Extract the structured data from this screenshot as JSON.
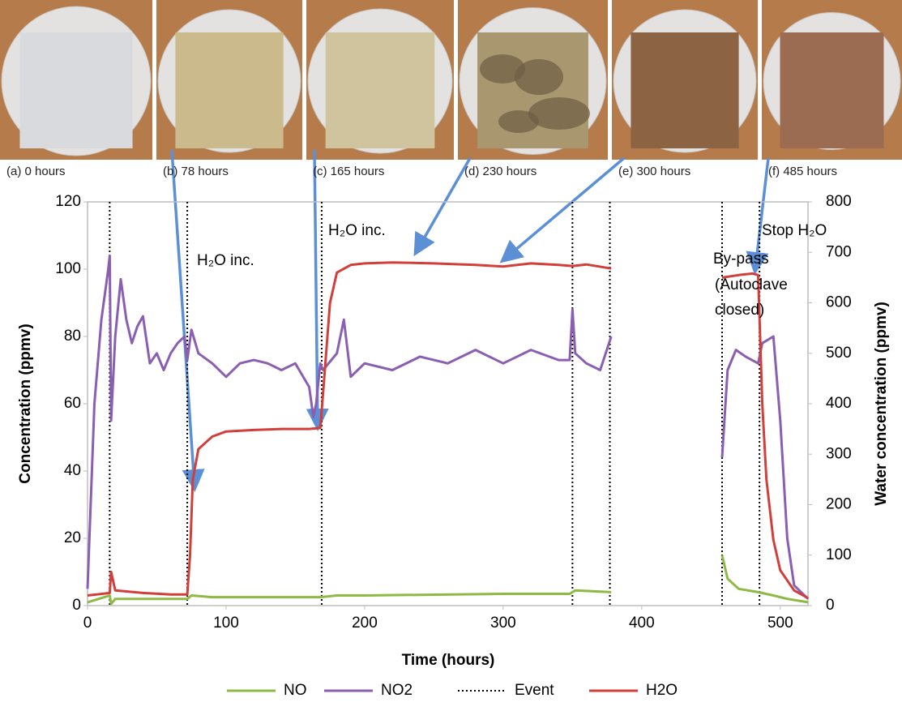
{
  "photos": [
    {
      "caption": "(a) 0 hours",
      "color": "#d9dadd"
    },
    {
      "caption": "(b) 78 hours",
      "color": "#cbbb8c"
    },
    {
      "caption": "(c) 165 hours",
      "color": "#d0c49e"
    },
    {
      "caption": "(d) 230 hours",
      "color": "#a9986f"
    },
    {
      "caption": "(e) 300 hours",
      "color": "#8c6443"
    },
    {
      "caption": "(f) 485 hours",
      "color": "#9c6c52"
    }
  ],
  "chart_data": {
    "type": "line",
    "xlabel": "Time (hours)",
    "ylabel": "Concentration (ppmv)",
    "y2label": "Water concentration (ppmv)",
    "xlim": [
      0,
      520
    ],
    "xticks": [
      0,
      100,
      200,
      300,
      400,
      500
    ],
    "ylim": [
      0,
      120
    ],
    "yticks": [
      0,
      20,
      40,
      60,
      80,
      100,
      120
    ],
    "y2lim": [
      0,
      800
    ],
    "y2ticks": [
      0,
      100,
      200,
      300,
      400,
      500,
      600,
      700,
      800
    ],
    "grid": false,
    "annotations": [
      "H₂O inc.",
      "H₂O inc.",
      "By-pass",
      "(Autoclave",
      "closed)",
      "Stop H₂O"
    ],
    "events": {
      "name": "Event",
      "color": "#000000",
      "x": [
        16,
        72,
        169,
        350,
        377,
        458,
        485
      ]
    },
    "series": [
      {
        "name": "NO",
        "color": "#8cba45",
        "x": [
          0,
          16,
          17,
          20,
          40,
          72,
          75,
          90,
          150,
          168,
          180,
          200,
          300,
          348,
          352,
          378,
          null,
          458,
          462,
          470,
          484,
          495,
          505,
          520
        ],
        "values": [
          1,
          3,
          0.5,
          2,
          2,
          2,
          3,
          2.5,
          2.5,
          2.5,
          3,
          3,
          3.5,
          3.5,
          4.5,
          4,
          null,
          15,
          8,
          5,
          4,
          3,
          2,
          1
        ]
      },
      {
        "name": "NO2",
        "color": "#8a5fb2",
        "x": [
          0,
          5,
          10,
          15,
          16,
          17,
          20,
          24,
          28,
          32,
          36,
          40,
          45,
          50,
          55,
          60,
          65,
          70,
          72,
          75,
          80,
          90,
          100,
          110,
          120,
          130,
          140,
          150,
          160,
          163,
          165,
          168,
          170,
          180,
          185,
          190,
          200,
          220,
          240,
          260,
          280,
          300,
          320,
          340,
          348,
          350,
          352,
          360,
          370,
          378,
          null,
          458,
          462,
          468,
          475,
          484,
          487,
          495,
          500,
          505,
          510,
          520
        ],
        "values": [
          5,
          60,
          85,
          100,
          104,
          55,
          80,
          97,
          85,
          78,
          83,
          86,
          72,
          75,
          70,
          75,
          78,
          80,
          73,
          82,
          75,
          72,
          68,
          72,
          73,
          72,
          70,
          72,
          65,
          56,
          60,
          72,
          70,
          75,
          85,
          68,
          72,
          70,
          74,
          72,
          76,
          72,
          76,
          73,
          73,
          88,
          75,
          72,
          70,
          80,
          null,
          44,
          70,
          76,
          74,
          72,
          78,
          80,
          55,
          20,
          6,
          2
        ]
      },
      {
        "name": "H2O",
        "color": "#d23f3a",
        "axis": "y2",
        "x": [
          0,
          16,
          17,
          20,
          40,
          60,
          72,
          74,
          76,
          80,
          90,
          100,
          120,
          140,
          160,
          168,
          170,
          175,
          180,
          190,
          200,
          220,
          250,
          280,
          300,
          320,
          340,
          350,
          360,
          378,
          null,
          458,
          470,
          480,
          484,
          487,
          490,
          495,
          500,
          510,
          520
        ],
        "values": [
          20,
          25,
          67,
          30,
          25,
          22,
          22,
          100,
          250,
          310,
          335,
          345,
          348,
          350,
          350,
          352,
          420,
          600,
          660,
          675,
          678,
          680,
          678,
          675,
          672,
          678,
          675,
          673,
          676,
          668,
          null,
          650,
          655,
          658,
          655,
          400,
          250,
          130,
          70,
          30,
          15
        ]
      }
    ]
  }
}
